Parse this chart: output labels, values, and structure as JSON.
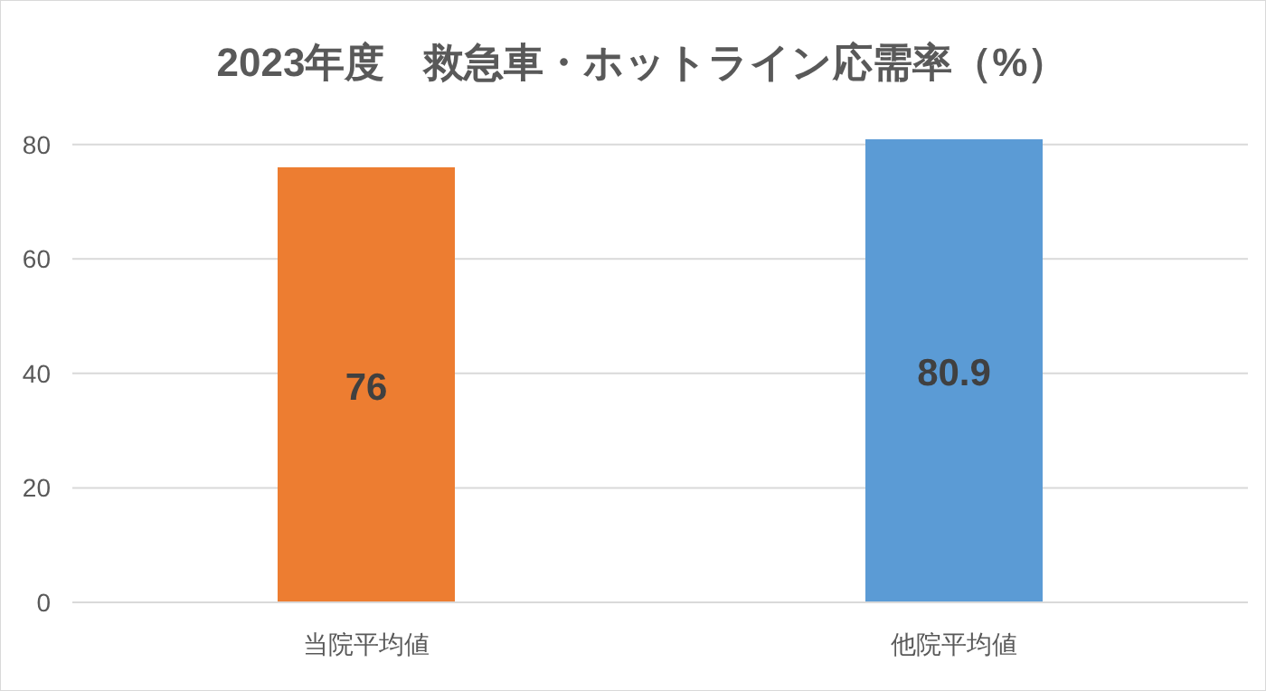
{
  "chart_data": {
    "type": "bar",
    "title": "2023年度　救急車・ホットライン応需率（%）",
    "categories": [
      "当院平均値",
      "他院平均値"
    ],
    "values": [
      76,
      80.9
    ],
    "colors": [
      "#ed7d31",
      "#5b9bd5"
    ],
    "ylim": [
      0,
      80.9
    ],
    "yticks": [
      0,
      20,
      40,
      60,
      80
    ],
    "grid": "y",
    "data_labels": true
  }
}
